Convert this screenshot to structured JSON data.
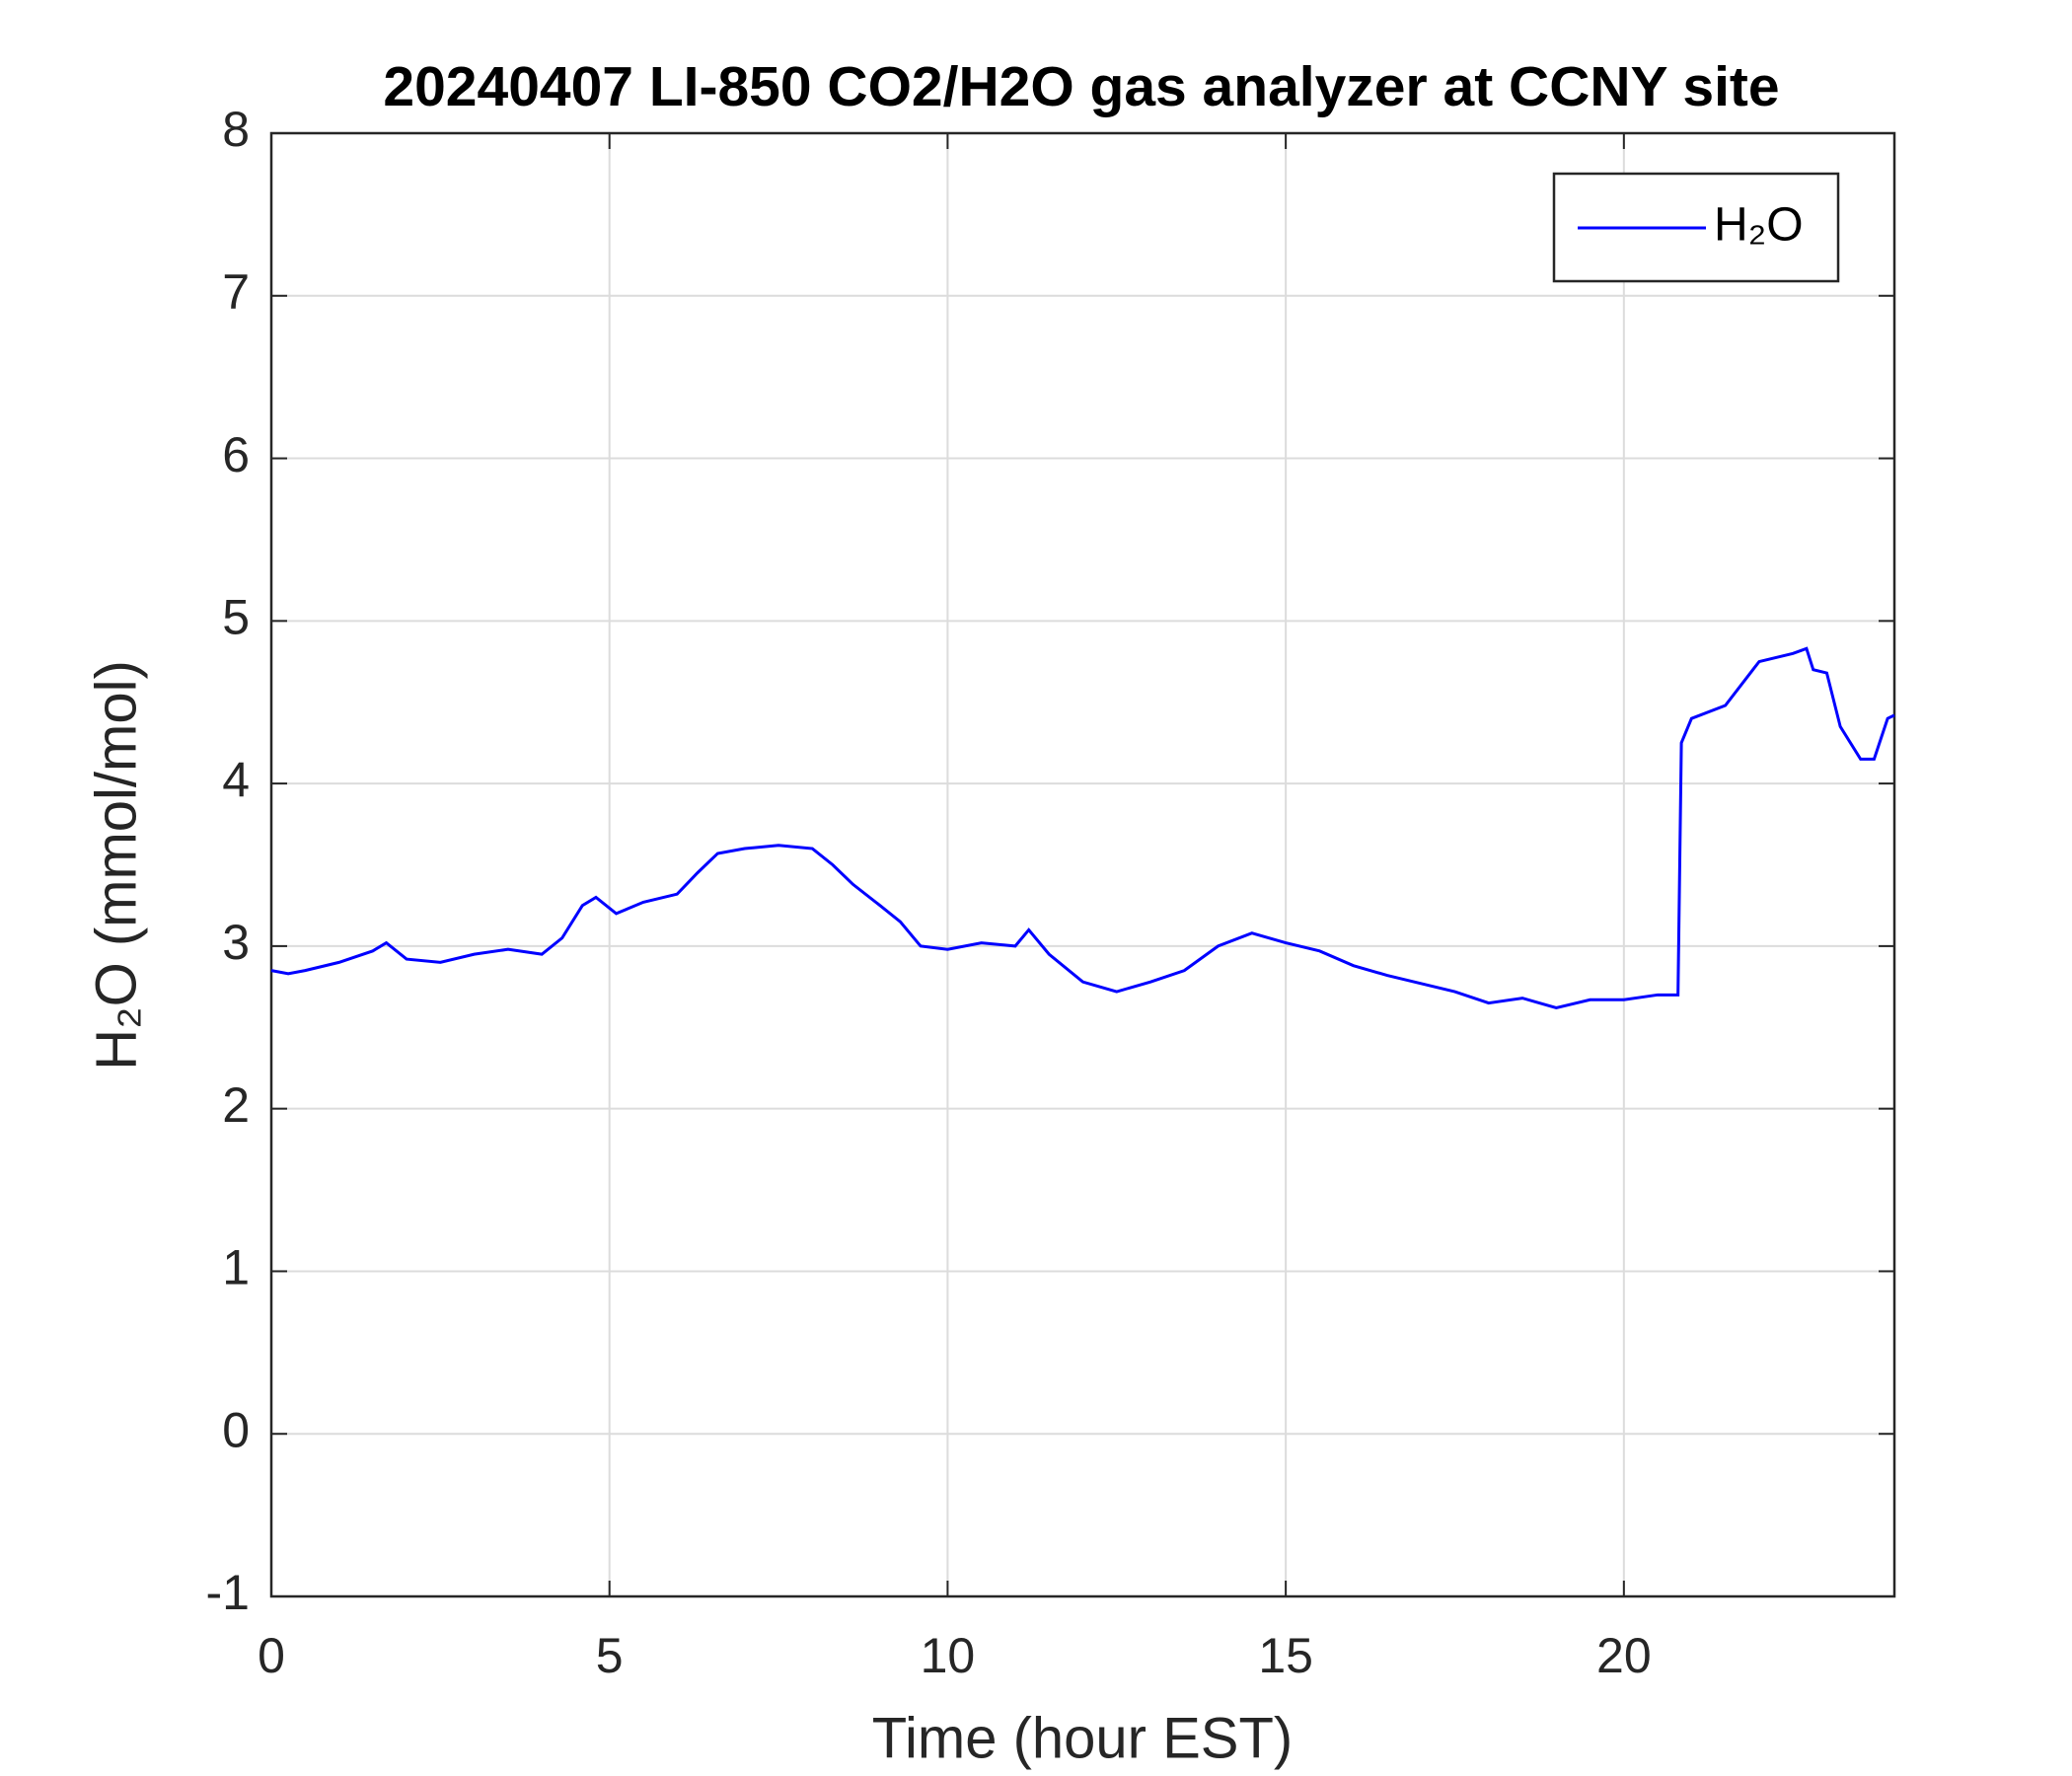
{
  "chart_data": {
    "type": "line",
    "title": "20240407 LI-850 CO2/H2O gas analyzer at CCNY site",
    "x_label": "Time (hour EST)",
    "y_label": "H₂O (mmol/mol)",
    "x": [
      0,
      0.25,
      0.5,
      1,
      1.5,
      1.7,
      2,
      2.5,
      3,
      3.5,
      4,
      4.3,
      4.6,
      4.8,
      5.1,
      5.5,
      6,
      6.3,
      6.6,
      7,
      7.5,
      8,
      8.3,
      8.6,
      9,
      9.3,
      9.6,
      10,
      10.5,
      11,
      11.2,
      11.5,
      12,
      12.5,
      13,
      13.5,
      14,
      14.5,
      15,
      15.5,
      16,
      16.5,
      17,
      17.5,
      18,
      18.5,
      19,
      19.5,
      20,
      20.5,
      20.8,
      20.85,
      21,
      21.5,
      22,
      22.5,
      22.7,
      22.8,
      23,
      23.2,
      23.5,
      23.7,
      23.9,
      24
    ],
    "series": [
      {
        "name": "H₂O",
        "color": "#0000ff",
        "values": [
          2.85,
          2.83,
          2.85,
          2.9,
          2.97,
          3.02,
          2.92,
          2.9,
          2.95,
          2.98,
          2.95,
          3.05,
          3.25,
          3.3,
          3.2,
          3.27,
          3.32,
          3.45,
          3.57,
          3.6,
          3.62,
          3.6,
          3.5,
          3.38,
          3.25,
          3.15,
          3.0,
          2.98,
          3.02,
          3.0,
          3.1,
          2.95,
          2.78,
          2.72,
          2.78,
          2.85,
          3.0,
          3.08,
          3.02,
          2.97,
          2.88,
          2.82,
          2.77,
          2.72,
          2.65,
          2.68,
          2.62,
          2.67,
          2.67,
          2.7,
          2.7,
          4.25,
          4.4,
          4.48,
          4.75,
          4.8,
          4.83,
          4.7,
          4.68,
          4.35,
          4.15,
          4.15,
          4.4,
          4.42
        ]
      }
    ],
    "xlim": [
      0,
      24
    ],
    "xticks": [
      0,
      5,
      10,
      15,
      20
    ],
    "ylim": [
      -1,
      8
    ],
    "yticks": [
      -1,
      0,
      1,
      2,
      3,
      4,
      5,
      6,
      7,
      8
    ],
    "grid": true,
    "legend": "top-right"
  }
}
